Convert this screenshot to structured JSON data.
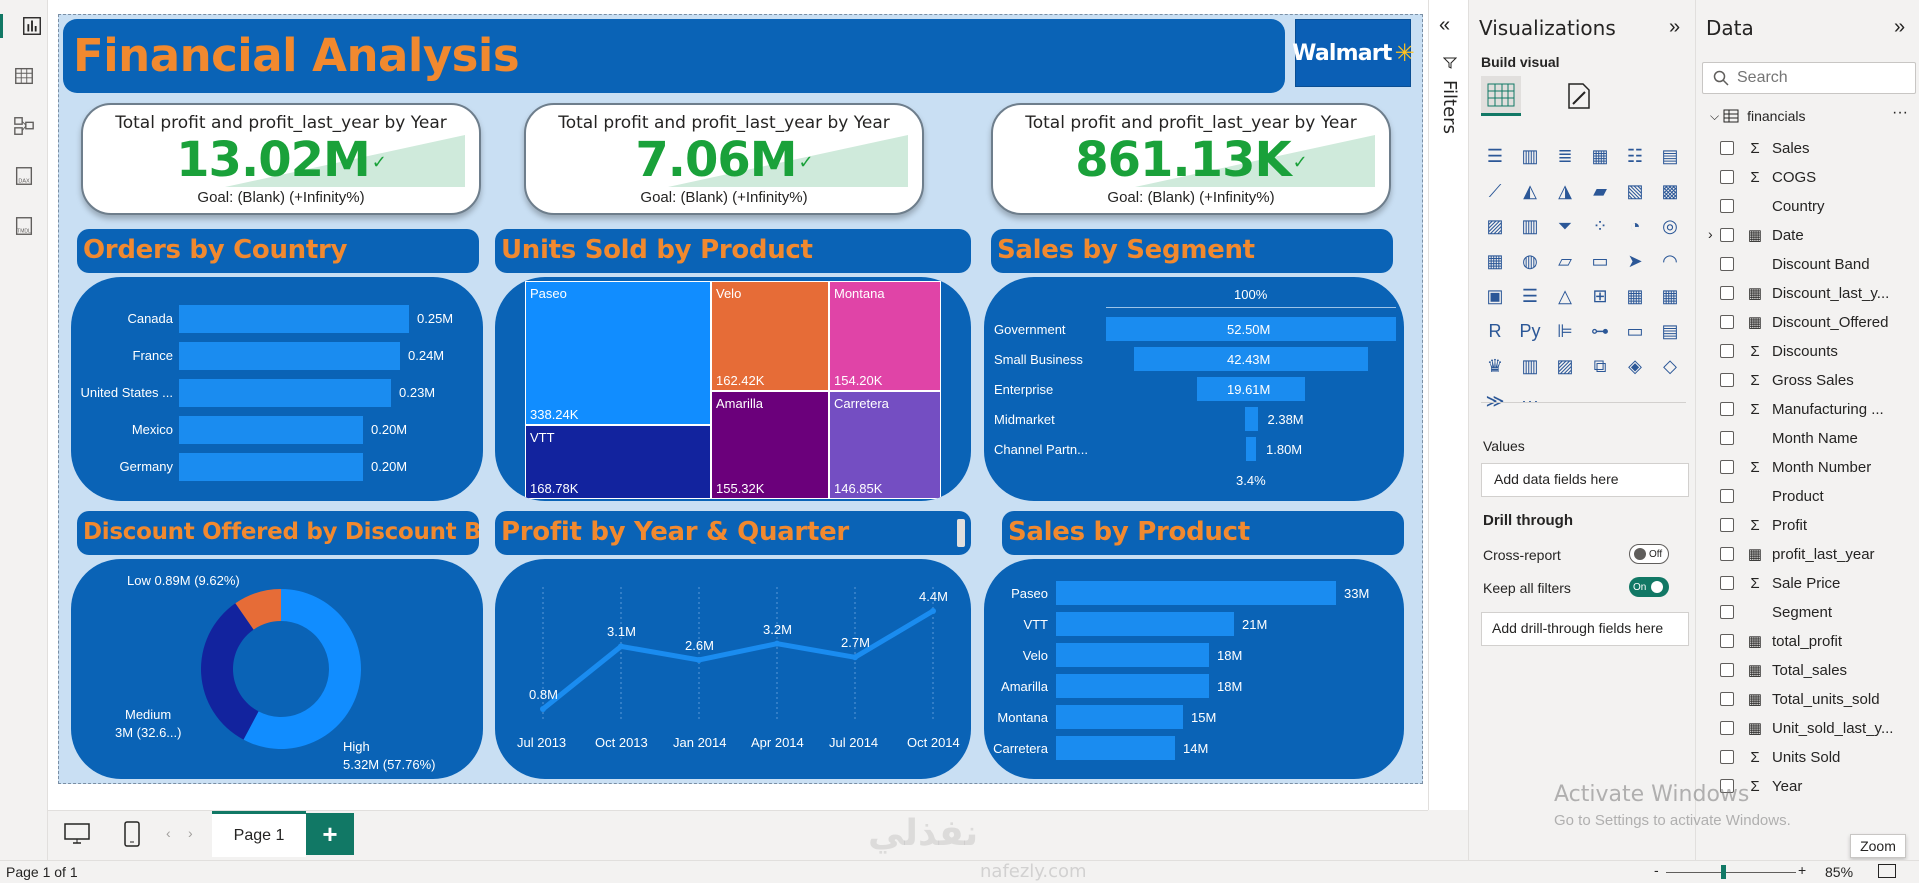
{
  "rail": {
    "items": [
      {
        "name": "report-view-icon"
      },
      {
        "name": "table-view-icon"
      },
      {
        "name": "model-view-icon"
      },
      {
        "name": "dax-query-icon",
        "label": "DAX"
      },
      {
        "name": "tmdl-view-icon",
        "label": "TMDL"
      }
    ]
  },
  "report": {
    "title": "Financial Analysis",
    "logo": {
      "text": "Walmart",
      "spark": "✳"
    },
    "kpis": [
      {
        "title": "Total profit and profit_last_year by Year",
        "value": "13.02M",
        "goal": "Goal: (Blank) (+Infinity%)"
      },
      {
        "title": "Total profit and profit_last_year by Year",
        "value": "7.06M",
        "goal": "Goal: (Blank) (+Infinity%)"
      },
      {
        "title": "Total profit and profit_last_year by Year",
        "value": "861.13K",
        "goal": "Goal: (Blank) (+Infinity%)"
      }
    ],
    "check_glyph": "✓",
    "orders_by_country": {
      "title": "Orders by Country",
      "rows": [
        {
          "country": "Canada",
          "value": 0.25,
          "label": "0.25M"
        },
        {
          "country": "France",
          "value": 0.24,
          "label": "0.24M"
        },
        {
          "country": "United States ...",
          "value": 0.23,
          "label": "0.23M"
        },
        {
          "country": "Mexico",
          "value": 0.2,
          "label": "0.20M"
        },
        {
          "country": "Germany",
          "value": 0.2,
          "label": "0.20M"
        }
      ]
    },
    "units_sold_by_product": {
      "title": "Units Sold by Product",
      "cells": [
        {
          "name": "Paseo",
          "value": "338.24K",
          "color": "#118dff"
        },
        {
          "name": "VTT",
          "value": "168.78K",
          "color": "#12239e"
        },
        {
          "name": "Velo",
          "value": "162.42K",
          "color": "#e66c37"
        },
        {
          "name": "Amarilla",
          "value": "155.32K",
          "color": "#6b007b"
        },
        {
          "name": "Montana",
          "value": "154.20K",
          "color": "#e044a7"
        },
        {
          "name": "Carretera",
          "value": "146.85K",
          "color": "#744ec2"
        }
      ]
    },
    "sales_by_segment": {
      "title": "Sales by Segment",
      "top_pct": "100%",
      "bottom_pct": "3.4%",
      "rows": [
        {
          "segment": "Government",
          "value": 52.5,
          "label": "52.50M"
        },
        {
          "segment": "Small Business",
          "value": 42.43,
          "label": "42.43M"
        },
        {
          "segment": "Enterprise",
          "value": 19.61,
          "label": "19.61M"
        },
        {
          "segment": "Midmarket",
          "value": 2.38,
          "label": "2.38M"
        },
        {
          "segment": "Channel Partn...",
          "value": 1.8,
          "label": "1.80M"
        }
      ]
    },
    "discount_by_band": {
      "title": "Discount Offered by Discount Band",
      "slices": [
        {
          "name": "High",
          "value": 5.32,
          "label_line1": "High",
          "label_line2": "5.32M (57.76%)",
          "color": "#118dff"
        },
        {
          "name": "Medium",
          "value": 3.0,
          "label_line1": "Medium",
          "label_line2": "3M (32.6...)",
          "color": "#12239e"
        },
        {
          "name": "Low",
          "value": 0.89,
          "label_line1": "Low 0.89M (9.62%)",
          "label_line2": "",
          "color": "#e66c37"
        }
      ]
    },
    "profit_by_year_quarter": {
      "title": "Profit by Year & Quarter",
      "points": [
        {
          "x": "Jul 2013",
          "y": 0.8,
          "label": "0.8M"
        },
        {
          "x": "Oct 2013",
          "y": 3.1,
          "label": "3.1M"
        },
        {
          "x": "Jan 2014",
          "y": 2.6,
          "label": "2.6M"
        },
        {
          "x": "Apr 2014",
          "y": 3.2,
          "label": "3.2M"
        },
        {
          "x": "Jul 2014",
          "y": 2.7,
          "label": "2.7M"
        },
        {
          "x": "Oct 2014",
          "y": 4.4,
          "label": "4.4M"
        }
      ]
    },
    "sales_by_product": {
      "title": "Sales by Product",
      "rows": [
        {
          "product": "Paseo",
          "value": 33,
          "label": "33M"
        },
        {
          "product": "VTT",
          "value": 21,
          "label": "21M"
        },
        {
          "product": "Velo",
          "value": 18,
          "label": "18M"
        },
        {
          "product": "Amarilla",
          "value": 18,
          "label": "18M"
        },
        {
          "product": "Montana",
          "value": 15,
          "label": "15M"
        },
        {
          "product": "Carretera",
          "value": 14,
          "label": "14M"
        }
      ]
    }
  },
  "filters": {
    "label": "Filters"
  },
  "visualizations": {
    "title": "Visualizations",
    "build_visual": "Build visual",
    "values_label": "Values",
    "values_placeholder": "Add data fields here",
    "drill_through": "Drill through",
    "cross_report": "Cross-report",
    "cross_report_state": "Off",
    "keep_filters": "Keep all filters",
    "keep_filters_state": "On",
    "drill_placeholder": "Add drill-through fields here",
    "more": "···"
  },
  "data_pane": {
    "title": "Data",
    "search_placeholder": "Search",
    "table": "financials",
    "table_more": "···",
    "fields": [
      {
        "name": "Sales",
        "type": "sigma"
      },
      {
        "name": "COGS",
        "type": "sigma"
      },
      {
        "name": "Country",
        "type": "none"
      },
      {
        "name": "Date",
        "type": "calendar",
        "expandable": true
      },
      {
        "name": "Discount Band",
        "type": "none"
      },
      {
        "name": "Discount_last_y...",
        "type": "calc"
      },
      {
        "name": "Discount_Offered",
        "type": "calc"
      },
      {
        "name": "Discounts",
        "type": "sigma"
      },
      {
        "name": "Gross Sales",
        "type": "sigma"
      },
      {
        "name": "Manufacturing ...",
        "type": "sigma"
      },
      {
        "name": "Month Name",
        "type": "none"
      },
      {
        "name": "Month Number",
        "type": "sigma"
      },
      {
        "name": "Product",
        "type": "none"
      },
      {
        "name": "Profit",
        "type": "sigma"
      },
      {
        "name": "profit_last_year",
        "type": "calc"
      },
      {
        "name": "Sale Price",
        "type": "sigma"
      },
      {
        "name": "Segment",
        "type": "none"
      },
      {
        "name": "total_profit",
        "type": "calc"
      },
      {
        "name": "Total_sales",
        "type": "calc"
      },
      {
        "name": "Total_units_sold",
        "type": "calc"
      },
      {
        "name": "Unit_sold_last_y...",
        "type": "calc"
      },
      {
        "name": "Units Sold",
        "type": "sigma"
      },
      {
        "name": "Year",
        "type": "sigma"
      }
    ]
  },
  "bottom": {
    "page_tab": "Page 1",
    "add_page": "+",
    "status": "Page 1 of 1",
    "zoom_tooltip": "Zoom",
    "zoom_level": "85%",
    "zoom_percent": 85,
    "zoom_minus": "-",
    "zoom_plus": "+"
  },
  "watermark": {
    "activate_title": "Activate Windows",
    "activate_sub": "Go to Settings to activate Windows.",
    "brand_arabic": "نفذلي",
    "brand_latin": "nafezly.com"
  }
}
